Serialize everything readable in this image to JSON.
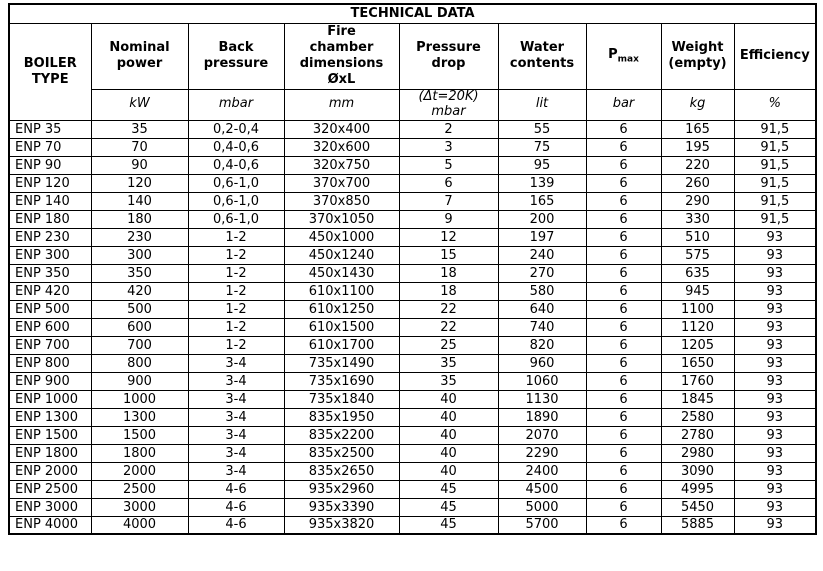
{
  "table": {
    "title": "TECHNICAL DATA",
    "row_header": {
      "id": "boiler-type",
      "label_lines": [
        "BOILER",
        "TYPE"
      ]
    },
    "columns": [
      {
        "id": "nominal-power",
        "label_lines": [
          "Nominal",
          "power"
        ],
        "unit_lines": [
          "kW"
        ]
      },
      {
        "id": "back-pressure",
        "label_lines": [
          "Back",
          "pressure"
        ],
        "unit_lines": [
          "mbar"
        ]
      },
      {
        "id": "fire-chamber-dimensions",
        "label_lines": [
          "Fire",
          "chamber",
          "dimensions",
          "ØxL"
        ],
        "unit_lines": [
          "mm"
        ]
      },
      {
        "id": "pressure-drop",
        "label_lines": [
          "Pressure",
          "drop"
        ],
        "unit_lines": [
          "(Δt=20K)",
          "mbar"
        ]
      },
      {
        "id": "water-contents",
        "label_lines": [
          "Water",
          "contents"
        ],
        "unit_lines": [
          "lit"
        ]
      },
      {
        "id": "pmax",
        "label": "P",
        "label_sub": "max",
        "unit_lines": [
          "bar"
        ]
      },
      {
        "id": "weight-empty",
        "label_lines": [
          "Weight",
          "(empty)"
        ],
        "unit_lines": [
          "kg"
        ]
      },
      {
        "id": "efficiency",
        "label_lines": [
          "Efficiency"
        ],
        "unit_lines": [
          "%"
        ]
      }
    ],
    "rows": [
      [
        "ENP 35",
        "35",
        "0,2-0,4",
        "320x400",
        "2",
        "55",
        "6",
        "165",
        "91,5"
      ],
      [
        "ENP 70",
        "70",
        "0,4-0,6",
        "320x600",
        "3",
        "75",
        "6",
        "195",
        "91,5"
      ],
      [
        "ENP 90",
        "90",
        "0,4-0,6",
        "320x750",
        "5",
        "95",
        "6",
        "220",
        "91,5"
      ],
      [
        "ENP 120",
        "120",
        "0,6-1,0",
        "370x700",
        "6",
        "139",
        "6",
        "260",
        "91,5"
      ],
      [
        "ENP 140",
        "140",
        "0,6-1,0",
        "370x850",
        "7",
        "165",
        "6",
        "290",
        "91,5"
      ],
      [
        "ENP 180",
        "180",
        "0,6-1,0",
        "370x1050",
        "9",
        "200",
        "6",
        "330",
        "91,5"
      ],
      [
        "ENP 230",
        "230",
        "1-2",
        "450x1000",
        "12",
        "197",
        "6",
        "510",
        "93"
      ],
      [
        "ENP 300",
        "300",
        "1-2",
        "450x1240",
        "15",
        "240",
        "6",
        "575",
        "93"
      ],
      [
        "ENP 350",
        "350",
        "1-2",
        "450x1430",
        "18",
        "270",
        "6",
        "635",
        "93"
      ],
      [
        "ENP 420",
        "420",
        "1-2",
        "610x1100",
        "18",
        "580",
        "6",
        "945",
        "93"
      ],
      [
        "ENP 500",
        "500",
        "1-2",
        "610x1250",
        "22",
        "640",
        "6",
        "1100",
        "93"
      ],
      [
        "ENP 600",
        "600",
        "1-2",
        "610x1500",
        "22",
        "740",
        "6",
        "1120",
        "93"
      ],
      [
        "ENP 700",
        "700",
        "1-2",
        "610x1700",
        "25",
        "820",
        "6",
        "1205",
        "93"
      ],
      [
        "ENP 800",
        "800",
        "3-4",
        "735x1490",
        "35",
        "960",
        "6",
        "1650",
        "93"
      ],
      [
        "ENP 900",
        "900",
        "3-4",
        "735x1690",
        "35",
        "1060",
        "6",
        "1760",
        "93"
      ],
      [
        "ENP 1000",
        "1000",
        "3-4",
        "735x1840",
        "40",
        "1130",
        "6",
        "1845",
        "93"
      ],
      [
        "ENP 1300",
        "1300",
        "3-4",
        "835x1950",
        "40",
        "1890",
        "6",
        "2580",
        "93"
      ],
      [
        "ENP 1500",
        "1500",
        "3-4",
        "835x2200",
        "40",
        "2070",
        "6",
        "2780",
        "93"
      ],
      [
        "ENP 1800",
        "1800",
        "3-4",
        "835x2500",
        "40",
        "2290",
        "6",
        "2980",
        "93"
      ],
      [
        "ENP 2000",
        "2000",
        "3-4",
        "835x2650",
        "40",
        "2400",
        "6",
        "3090",
        "93"
      ],
      [
        "ENP 2500",
        "2500",
        "4-6",
        "935x2960",
        "45",
        "4500",
        "6",
        "4995",
        "93"
      ],
      [
        "ENP 3000",
        "3000",
        "4-6",
        "935x3390",
        "45",
        "5000",
        "6",
        "5450",
        "93"
      ],
      [
        "ENP 4000",
        "4000",
        "4-6",
        "935x3820",
        "45",
        "5700",
        "6",
        "5885",
        "93"
      ]
    ],
    "colors": {
      "border": "#000000",
      "text": "#000000",
      "background": "#ffffff"
    }
  }
}
